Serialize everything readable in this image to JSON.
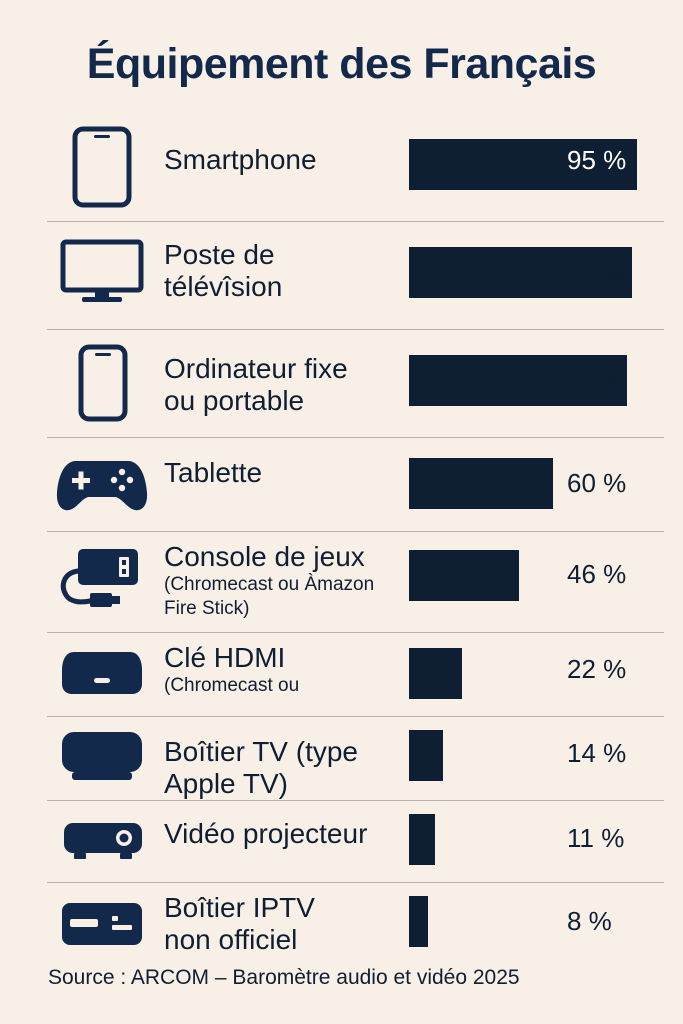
{
  "title": "Équipement des Français",
  "source": "Source : ARCOM – Baromètre audio et vidéo 2025",
  "chart_data": {
    "type": "bar",
    "orientation": "horizontal",
    "title": "Équipement des Français",
    "value_unit": "%",
    "xlim": [
      0,
      95
    ],
    "grid": false,
    "categories": [
      {
        "label": [
          "Smartphone"
        ],
        "sub": [],
        "icon": "tablet-icon",
        "value": 95,
        "display": "95 %"
      },
      {
        "label": [
          "Poste de",
          "télévîsion"
        ],
        "sub": [],
        "icon": "monitor-icon",
        "value": 93,
        "display": "93 %"
      },
      {
        "label": [
          "Ordinateur fixe",
          "ou portable"
        ],
        "sub": [],
        "icon": "smartphone-icon",
        "value": 91,
        "display": "91 %"
      },
      {
        "label": [
          "Tablette"
        ],
        "sub": [],
        "icon": "gamepad-icon",
        "value": 60,
        "display": "60 %"
      },
      {
        "label": [
          "Console de jeux"
        ],
        "sub": [
          "(Chromecast ou Àmazon",
          "Fire Stick)"
        ],
        "icon": "hdmi-stick-icon",
        "value": 46,
        "display": "46 %"
      },
      {
        "label": [
          "Clé HDMI"
        ],
        "sub": [
          "(Chromecast ou"
        ],
        "icon": "tv-box-icon",
        "value": 22,
        "display": "22 %"
      },
      {
        "label": [
          "Boîtier TV (type",
          "Apple TV)"
        ],
        "sub": [],
        "icon": "apple-tv-box-icon",
        "value": 14,
        "display": "14 %"
      },
      {
        "label": [
          "Vidéo projecteur"
        ],
        "sub": [],
        "icon": "projector-icon",
        "value": 11,
        "display": "11 %"
      },
      {
        "label": [
          "Boîtier IPTV",
          "non officiel"
        ],
        "sub": [],
        "icon": "iptv-box-icon",
        "value": 8,
        "display": "8 %"
      }
    ]
  }
}
